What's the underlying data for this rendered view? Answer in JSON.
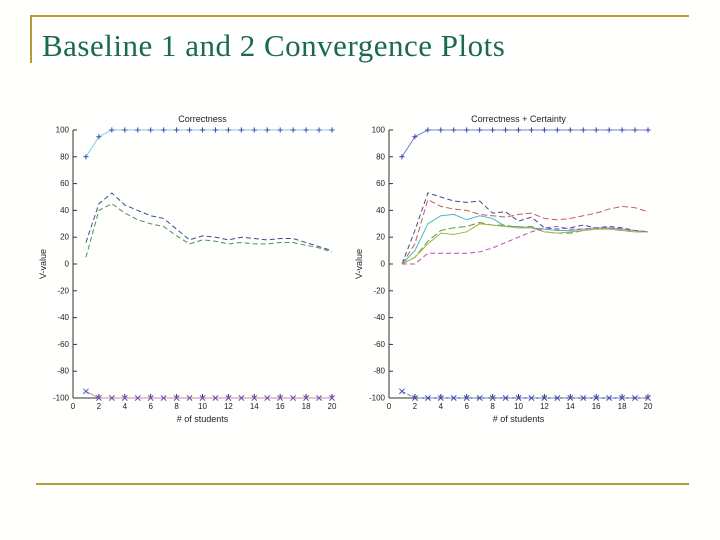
{
  "slide": {
    "title": "Baseline 1 and 2 Convergence Plots",
    "title_color": "#1a6a50",
    "accent_gold": "#b59a38",
    "background": "#fffffd"
  },
  "chart_data": [
    {
      "type": "line",
      "title": "Correctness",
      "xlabel": "# of students",
      "ylabel": "V-value",
      "xlim": [
        0,
        20
      ],
      "ylim": [
        -100,
        100
      ],
      "xticks": [
        0,
        2,
        4,
        6,
        8,
        10,
        12,
        14,
        16,
        18,
        20
      ],
      "yticks": [
        -100,
        -80,
        -60,
        -40,
        -20,
        0,
        20,
        40,
        60,
        80,
        100
      ],
      "grid": false,
      "legend": null,
      "x": [
        1,
        2,
        3,
        4,
        5,
        6,
        7,
        8,
        9,
        10,
        11,
        12,
        13,
        14,
        15,
        16,
        17,
        18,
        19,
        20
      ],
      "series": [
        {
          "name": "upper-bound-line",
          "color": "#7ccfe3",
          "dash": null,
          "marker": "plus",
          "marker_color": "#3b4bb0",
          "values": [
            80,
            95,
            100,
            100,
            100,
            100,
            100,
            100,
            100,
            100,
            100,
            100,
            100,
            100,
            100,
            100,
            100,
            100,
            100,
            100
          ]
        },
        {
          "name": "navy-line",
          "color": "#3d4c94",
          "dash": "5,3",
          "marker": null,
          "marker_color": null,
          "values": [
            16,
            45,
            53,
            44,
            40,
            36,
            34,
            26,
            18,
            21,
            20,
            18,
            20,
            19,
            18,
            19,
            19,
            16,
            13,
            10
          ]
        },
        {
          "name": "green-line",
          "color": "#4f8f52",
          "dash": "5,3",
          "marker": null,
          "marker_color": null,
          "values": [
            5,
            40,
            45,
            38,
            33,
            30,
            28,
            21,
            15,
            18,
            17,
            15,
            16,
            15,
            15,
            16,
            16,
            14,
            12,
            9
          ]
        },
        {
          "name": "lower-bound-line",
          "color": "#d08a96",
          "dash": null,
          "marker": "x",
          "marker_color": "#5b55c0",
          "values": [
            -95,
            -100,
            -100,
            -100,
            -100,
            -100,
            -100,
            -100,
            -100,
            -100,
            -100,
            -100,
            -100,
            -100,
            -100,
            -100,
            -100,
            -100,
            -100,
            -100
          ]
        }
      ]
    },
    {
      "type": "line",
      "title": "Correctness + Certainty",
      "xlabel": "# of students",
      "ylabel": "V-value",
      "xlim": [
        0,
        20
      ],
      "ylim": [
        -100,
        100
      ],
      "xticks": [
        0,
        2,
        4,
        6,
        8,
        10,
        12,
        14,
        16,
        18,
        20
      ],
      "yticks": [
        -100,
        -80,
        -60,
        -40,
        -20,
        0,
        20,
        40,
        60,
        80,
        100
      ],
      "grid": false,
      "legend": null,
      "x": [
        1,
        2,
        3,
        4,
        5,
        6,
        7,
        8,
        9,
        10,
        11,
        12,
        13,
        14,
        15,
        16,
        17,
        18,
        19,
        20
      ],
      "series": [
        {
          "name": "upper-bound-line",
          "color": "#7583d6",
          "dash": null,
          "marker": "plus",
          "marker_color": "#3a3fae",
          "values": [
            80,
            95,
            100,
            100,
            100,
            100,
            100,
            100,
            100,
            100,
            100,
            100,
            100,
            100,
            100,
            100,
            100,
            100,
            100,
            100
          ]
        },
        {
          "name": "navy-line",
          "color": "#3d4c94",
          "dash": "5,3",
          "marker": null,
          "marker_color": null,
          "values": [
            0,
            25,
            53,
            50,
            47,
            46,
            47,
            38,
            39,
            32,
            35,
            27,
            26,
            27,
            29,
            27,
            28,
            27,
            25,
            24
          ]
        },
        {
          "name": "red-line",
          "color": "#c65b5b",
          "dash": "6,3",
          "marker": null,
          "marker_color": null,
          "values": [
            0,
            15,
            48,
            43,
            41,
            40,
            37,
            36,
            35,
            37,
            38,
            34,
            33,
            34,
            36,
            38,
            41,
            43,
            42,
            39
          ]
        },
        {
          "name": "cyan-line",
          "color": "#46b8c8",
          "dash": null,
          "marker": null,
          "marker_color": null,
          "values": [
            0,
            10,
            30,
            36,
            37,
            33,
            36,
            34,
            28,
            28,
            27,
            26,
            25,
            25,
            26,
            27,
            27,
            26,
            25,
            24
          ]
        },
        {
          "name": "green-line",
          "color": "#4a9e4e",
          "dash": "7,3",
          "marker": null,
          "marker_color": null,
          "values": [
            0,
            5,
            17,
            25,
            27,
            28,
            31,
            29,
            29,
            27,
            28,
            24,
            23,
            23,
            25,
            26,
            26,
            25,
            24,
            24
          ]
        },
        {
          "name": "yellow-line",
          "color": "#b0b044",
          "dash": null,
          "marker": null,
          "marker_color": null,
          "values": [
            0,
            5,
            15,
            23,
            22,
            24,
            30,
            29,
            28,
            27,
            27,
            24,
            23,
            24,
            25,
            26,
            26,
            25,
            24,
            24
          ]
        },
        {
          "name": "magenta-line",
          "color": "#bc4fbc",
          "dash": "5,3",
          "marker": null,
          "marker_color": null,
          "values": [
            0,
            0,
            8,
            8,
            8,
            8,
            9,
            12,
            16,
            20,
            24,
            27,
            28,
            26,
            26,
            27,
            27,
            26,
            25,
            24
          ]
        },
        {
          "name": "lower-bound-line",
          "color": "#7583d6",
          "dash": "4,2",
          "marker": "x",
          "marker_color": "#4a4abc",
          "values": [
            -95,
            -100,
            -100,
            -100,
            -100,
            -100,
            -100,
            -100,
            -100,
            -100,
            -100,
            -100,
            -100,
            -100,
            -100,
            -100,
            -100,
            -100,
            -100,
            -100
          ]
        }
      ]
    }
  ]
}
